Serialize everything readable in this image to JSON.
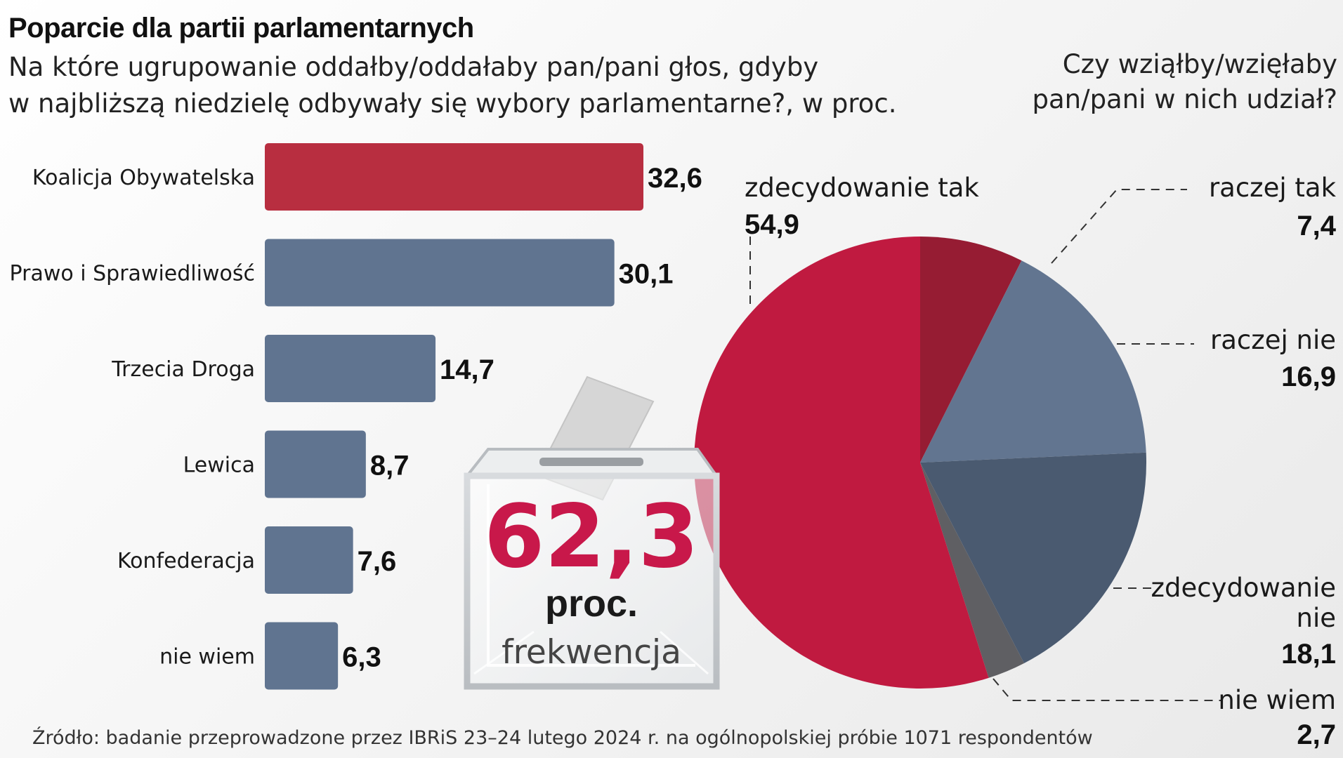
{
  "header": {
    "title": "Poparcie dla partii parlamentarnych",
    "subtitle_line1": "Na które ugrupowanie oddałby/oddałaby pan/pani głos, gdyby",
    "subtitle_line2": "w najbliższą niedzielę odbywały się wybory parlamentarne?, w proc.",
    "right_question_line1": "Czy wziąłby/wzięłaby",
    "right_question_line2": "pan/pani w nich udział?"
  },
  "turnout": {
    "value": "62,3",
    "unit": "proc.",
    "label": "frekwencja"
  },
  "footer": {
    "source": "Źródło: badanie przeprowadzone przez IBRiS 23–24 lutego 2024 r. na ogólnopolskiej próbie 1071 respondentów"
  },
  "colors": {
    "ko_red": "#b82e40",
    "party_blue": "#607490",
    "pie_red": "#c01a40",
    "pie_dark_red": "#961c33",
    "pie_blue": "#627590",
    "pie_dark_blue": "#4a5a70",
    "pie_grey": "#5f5f63",
    "turnout_red": "#c8184a"
  },
  "chart_data": [
    {
      "type": "bar",
      "orientation": "horizontal",
      "categories": [
        "Koalicja Obywatelska",
        "Prawo i Sprawiedliwość",
        "Trzecia Droga",
        "Lewica",
        "Konfederacja",
        "nie wiem"
      ],
      "values": [
        32.6,
        30.1,
        14.7,
        8.7,
        7.6,
        6.3
      ],
      "value_labels": [
        "32,6",
        "30,1",
        "14,7",
        "8,7",
        "7,6",
        "6,3"
      ],
      "bar_colors": [
        "#b82e40",
        "#607490",
        "#607490",
        "#607490",
        "#607490",
        "#607490"
      ],
      "xlim": [
        0,
        32.6
      ]
    },
    {
      "type": "pie",
      "start": "top, clockwise",
      "slices": [
        {
          "label": [
            "raczej tak"
          ],
          "value": 7.4,
          "value_label": "7,4",
          "color": "#961c33"
        },
        {
          "label": [
            "raczej nie"
          ],
          "value": 16.9,
          "value_label": "16,9",
          "color": "#627590"
        },
        {
          "label": [
            "zdecydowanie",
            "nie"
          ],
          "value": 18.1,
          "value_label": "18,1",
          "color": "#4a5a70"
        },
        {
          "label": [
            "nie wiem"
          ],
          "value": 2.7,
          "value_label": "2,7",
          "color": "#5f5f63"
        },
        {
          "label": [
            "zdecydowanie tak"
          ],
          "value": 54.9,
          "value_label": "54,9",
          "color": "#c01a40"
        }
      ]
    }
  ]
}
